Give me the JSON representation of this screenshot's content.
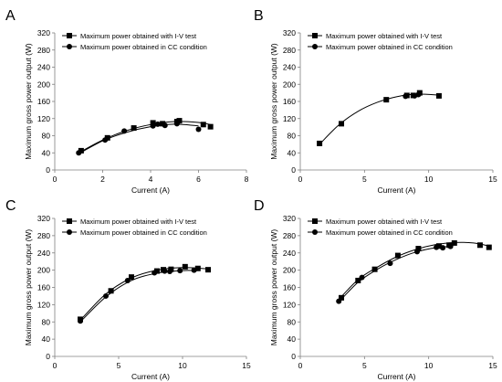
{
  "chart_data": [
    {
      "type": "line",
      "panel": "A",
      "xlabel": "Current (A)",
      "ylabel": "Maximum gross power output (W)",
      "xlim": [
        0,
        8
      ],
      "xticks": [
        0,
        2,
        4,
        6,
        8
      ],
      "ylim": [
        0,
        320
      ],
      "yticks": [
        0,
        40,
        80,
        120,
        160,
        200,
        240,
        280,
        320
      ],
      "legend_position": "top-left",
      "series": [
        {
          "name": "Maximum power obtained with I-V test",
          "marker": "square",
          "x": [
            1.1,
            2.2,
            3.3,
            4.1,
            4.5,
            5.1,
            5.2,
            6.2,
            6.5
          ],
          "y": [
            45,
            75,
            98,
            110,
            108,
            113,
            115,
            106,
            101
          ]
        },
        {
          "name": "Maximum power obtained in CC condition",
          "marker": "circle",
          "x": [
            1.0,
            2.1,
            2.9,
            4.1,
            4.3,
            4.6,
            5.1,
            6.0
          ],
          "y": [
            40,
            70,
            91,
            103,
            107,
            104,
            108,
            95
          ]
        }
      ],
      "fit_curves": [
        {
          "x": [
            1.0,
            2.0,
            3.0,
            4.0,
            5.0,
            6.0,
            6.5
          ],
          "y": [
            40,
            70,
            92,
            106,
            113,
            111,
            106
          ]
        },
        {
          "x": [
            1.0,
            2.0,
            3.0,
            4.0,
            5.0,
            6.0
          ],
          "y": [
            38,
            68,
            88,
            101,
            107,
            103
          ]
        }
      ]
    },
    {
      "type": "line",
      "panel": "B",
      "xlabel": "Current (A)",
      "ylabel": "Maximum gross power output (W)",
      "xlim": [
        0,
        15
      ],
      "xticks": [
        0,
        5,
        10,
        15
      ],
      "ylim": [
        0,
        320
      ],
      "yticks": [
        0,
        40,
        80,
        120,
        160,
        200,
        240,
        280,
        320
      ],
      "legend_position": "top-left",
      "series": [
        {
          "name": "Maximum power obtained with I-V test",
          "marker": "square",
          "x": [
            1.5,
            3.2,
            6.7,
            8.3,
            8.8,
            9.3,
            10.8
          ],
          "y": [
            62,
            108,
            164,
            174,
            174,
            180,
            173
          ]
        },
        {
          "name": "Maximum power obtained in CC condition",
          "marker": "circle",
          "x": [
            8.2,
            8.9,
            9.2
          ],
          "y": [
            172,
            173,
            176
          ]
        }
      ],
      "fit_curves": [
        {
          "x": [
            1.5,
            3.0,
            4.5,
            6.0,
            7.5,
            9.0,
            10.8
          ],
          "y": [
            60,
            105,
            137,
            158,
            171,
            177,
            175
          ]
        }
      ]
    },
    {
      "type": "line",
      "panel": "C",
      "xlabel": "Current (A)",
      "ylabel": "Maximum gross power output (W)",
      "xlim": [
        0,
        15
      ],
      "xticks": [
        0,
        5,
        10,
        15
      ],
      "ylim": [
        0,
        320
      ],
      "yticks": [
        0,
        40,
        80,
        120,
        160,
        200,
        240,
        280,
        320
      ],
      "legend_position": "top-left",
      "series": [
        {
          "name": "Maximum power obtained with I-V test",
          "marker": "square",
          "x": [
            2.0,
            4.4,
            6.0,
            8.0,
            8.5,
            9.1,
            10.2,
            11.2,
            12.0
          ],
          "y": [
            86,
            152,
            184,
            198,
            201,
            202,
            208,
            204,
            201
          ]
        },
        {
          "name": "Maximum power obtained in CC condition",
          "marker": "circle",
          "x": [
            2.0,
            4.0,
            5.7,
            7.8,
            8.6,
            9.0,
            9.8,
            10.9
          ],
          "y": [
            82,
            140,
            176,
            194,
            198,
            197,
            199,
            200
          ]
        }
      ],
      "fit_curves": [
        {
          "x": [
            2,
            4,
            6,
            8,
            10,
            12
          ],
          "y": [
            84,
            145,
            182,
            200,
            206,
            203
          ]
        },
        {
          "x": [
            2,
            4,
            6,
            8,
            10,
            11
          ],
          "y": [
            80,
            138,
            176,
            193,
            199,
            199
          ]
        }
      ]
    },
    {
      "type": "line",
      "panel": "D",
      "xlabel": "Current (A)",
      "ylabel": "Maximum gross power output (W)",
      "xlim": [
        0,
        15
      ],
      "xticks": [
        0,
        5,
        10,
        15
      ],
      "ylim": [
        0,
        320
      ],
      "yticks": [
        0,
        40,
        80,
        120,
        160,
        200,
        240,
        280,
        320
      ],
      "legend_position": "top-left",
      "series": [
        {
          "name": "Maximum power obtained with I-V test",
          "marker": "square",
          "x": [
            3.2,
            4.5,
            5.8,
            7.6,
            9.2,
            10.8,
            11.6,
            12.0,
            14.0,
            14.7
          ],
          "y": [
            136,
            176,
            202,
            234,
            250,
            256,
            258,
            263,
            258,
            253
          ]
        },
        {
          "name": "Maximum power obtained in CC condition",
          "marker": "circle",
          "x": [
            3.0,
            4.8,
            7.0,
            9.1,
            10.6,
            11.1,
            11.7
          ],
          "y": [
            128,
            183,
            216,
            243,
            253,
            252,
            255
          ]
        }
      ],
      "fit_curves": [
        {
          "x": [
            3,
            4.5,
            6,
            7.5,
            9,
            10.5,
            12,
            13.5,
            14.7
          ],
          "y": [
            132,
            178,
            207,
            231,
            248,
            259,
            264,
            263,
            256
          ]
        },
        {
          "x": [
            3,
            4.5,
            6,
            7.5,
            9,
            10.5,
            11.7
          ],
          "y": [
            126,
            172,
            202,
            225,
            242,
            252,
            255
          ]
        }
      ]
    }
  ]
}
